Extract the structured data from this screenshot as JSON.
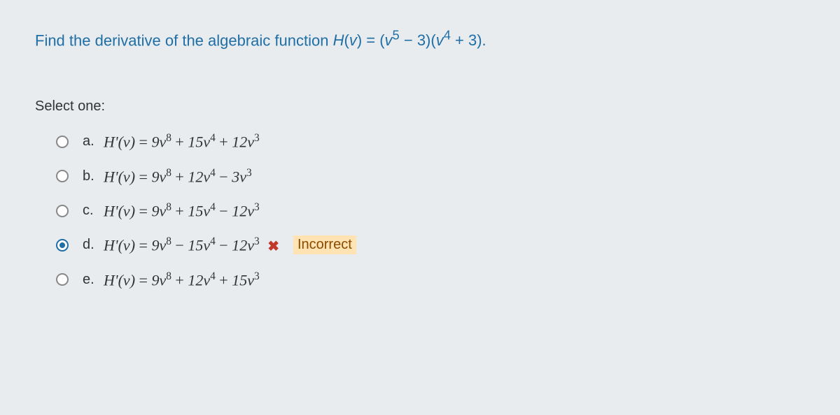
{
  "prompt": {
    "text_before": "Find the derivative of the algebraic function ",
    "func_html": "H(v) = (v⁵ − 3)(v⁴ + 3).",
    "text_color": "#1f6ea5",
    "font_size": 22
  },
  "select_label": "Select one:",
  "options": [
    {
      "letter": "a.",
      "eq": "H'(v) = 9v⁸ + 15v⁴ + 12v³",
      "selected": false,
      "feedback": null
    },
    {
      "letter": "b.",
      "eq": "H'(v) = 9v⁸ + 12v⁴ − 3v³",
      "selected": false,
      "feedback": null
    },
    {
      "letter": "c.",
      "eq": "H'(v) = 9v⁸ + 15v⁴ − 12v³",
      "selected": false,
      "feedback": null
    },
    {
      "letter": "d.",
      "eq": "H'(v) = 9v⁸ − 15v⁴ − 12v³",
      "selected": true,
      "feedback": "Incorrect",
      "marker": "✖"
    },
    {
      "letter": "e.",
      "eq": "H'(v) = 9v⁸ + 12v⁴ + 15v³",
      "selected": false,
      "feedback": null
    }
  ],
  "styling": {
    "background_color": "#e8ecef",
    "prompt_color": "#1f6ea5",
    "option_font_size": 20,
    "marker_color": "#c0392b",
    "feedback_bg": "#ffe3b3",
    "feedback_color": "#8a4b00"
  }
}
